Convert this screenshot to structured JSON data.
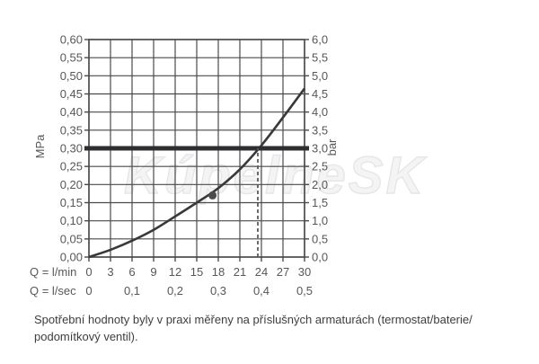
{
  "watermark": "KúpelneSK",
  "caption": {
    "line1": "Spotřební hodnoty byly v praxi měřeny na příslušných armaturách (termostat/baterie/",
    "line2": "podomítkový ventil)."
  },
  "chart_data": {
    "type": "line",
    "title": "",
    "x_axis": {
      "row1_label": "Q = l/min",
      "row2_label": "Q = l/sec",
      "range_lmin": [
        0,
        30
      ],
      "ticks_lmin": [
        "0",
        "3",
        "6",
        "9",
        "12",
        "15",
        "18",
        "21",
        "24",
        "27",
        "30"
      ],
      "ticks_lsec": [
        "0",
        "0,1",
        "0,2",
        "0,3",
        "0,4",
        "0,5"
      ]
    },
    "y_axis_left": {
      "label": "MPa",
      "range": [
        0,
        0.6
      ],
      "ticks": [
        "0,60",
        "0,55",
        "0,50",
        "0,45",
        "0,40",
        "0,35",
        "0,30",
        "0,25",
        "0,20",
        "0,15",
        "0,10",
        "0,05",
        "0,00"
      ]
    },
    "y_axis_right": {
      "label": "bar",
      "range": [
        0,
        6.0
      ],
      "ticks": [
        "6,0",
        "5,5",
        "5,0",
        "4,5",
        "4,0",
        "3,5",
        "3,0",
        "2,5",
        "2,0",
        "1,5",
        "1,0",
        "0,5",
        "0,0"
      ]
    },
    "series": [
      {
        "name": "flow-pressure-curve",
        "x_lmin": [
          0,
          3,
          6,
          9,
          12,
          15,
          18,
          21,
          24,
          27,
          30
        ],
        "y_mpa": [
          0,
          0.02,
          0.045,
          0.075,
          0.112,
          0.15,
          0.19,
          0.242,
          0.308,
          0.385,
          0.465
        ]
      }
    ],
    "reference_line_mpa": 0.3,
    "dashed_guide_lmin": 23.5,
    "marker_point": {
      "q_lmin": 17.2,
      "p_mpa": 0.17
    },
    "grid": true,
    "legend": false,
    "colors": {
      "curve": "#39393b",
      "grid": "#4a4a4c",
      "reference": "#2e2e30",
      "dashed": "#5c5c5e",
      "marker": "#4c4c4e",
      "labels": "#57575a",
      "caption": "#3d3d3f",
      "watermark": "#eeeeee"
    }
  }
}
